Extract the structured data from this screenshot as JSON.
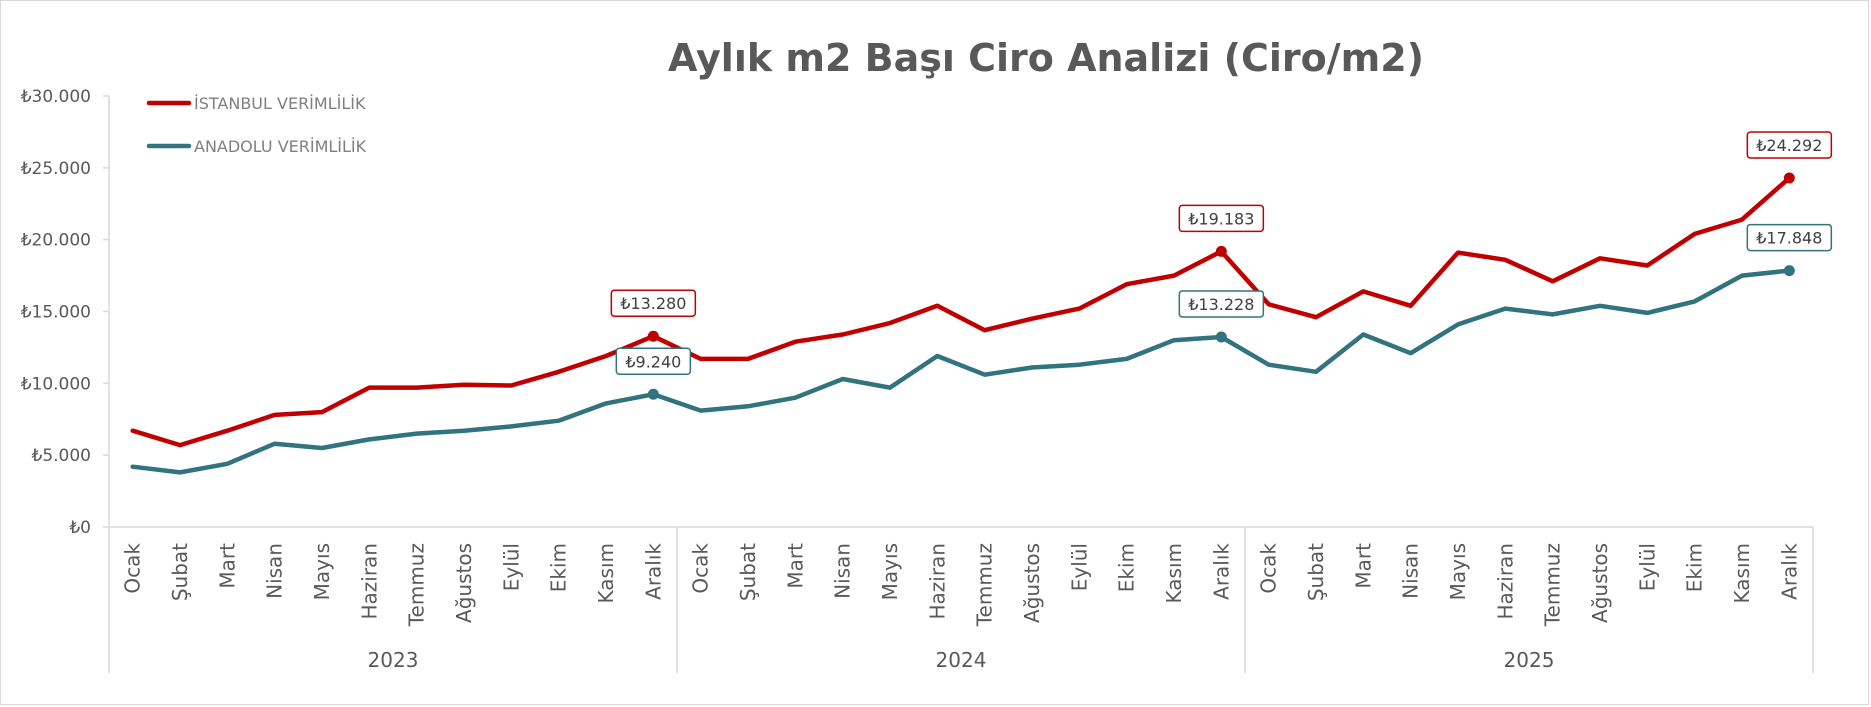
{
  "chart_data": {
    "type": "line",
    "title": "Aylık m2 Başı Ciro Analizi (Ciro/m2)",
    "xlabel": "",
    "ylabel": "",
    "ylim": [
      0,
      30000
    ],
    "yticks": [
      "₺0",
      "₺5.000",
      "₺10.000",
      "₺15.000",
      "₺20.000",
      "₺25.000",
      "₺30.000"
    ],
    "grid": false,
    "legend_position": "top-left",
    "groups": [
      {
        "label": "2023",
        "categories": [
          "Ocak",
          "Şubat",
          "Mart",
          "Nisan",
          "Mayıs",
          "Haziran",
          "Temmuz",
          "Ağustos",
          "Eylül",
          "Ekim",
          "Kasım",
          "Aralık"
        ]
      },
      {
        "label": "2024",
        "categories": [
          "Ocak",
          "Şubat",
          "Mart",
          "Nisan",
          "Mayıs",
          "Haziran",
          "Temmuz",
          "Ağustos",
          "Eylül",
          "Ekim",
          "Kasım",
          "Aralık"
        ]
      },
      {
        "label": "2025",
        "categories": [
          "Ocak",
          "Şubat",
          "Mart",
          "Nisan",
          "Mayıs",
          "Haziran",
          "Temmuz",
          "Ağustos",
          "Eylül",
          "Ekim",
          "Kasım",
          "Aralık"
        ]
      }
    ],
    "series": [
      {
        "name": "İSTANBUL VERİMLİLİK",
        "color": "#c00000",
        "values": [
          6700,
          5700,
          6700,
          7800,
          8000,
          9700,
          9700,
          9900,
          9850,
          10800,
          11900,
          13280,
          11700,
          11700,
          12900,
          13400,
          14200,
          15400,
          13700,
          14500,
          15200,
          16900,
          17500,
          19183,
          15500,
          14600,
          16400,
          15400,
          19100,
          18600,
          17100,
          18700,
          18200,
          20400,
          21400,
          24292
        ],
        "labels": [
          {
            "index": 11,
            "text": "₺13.280"
          },
          {
            "index": 23,
            "text": "₺19.183"
          },
          {
            "index": 35,
            "text": "₺24.292"
          }
        ]
      },
      {
        "name": "ANADOLU VERİMLİLİK",
        "color": "#31737f",
        "values": [
          4200,
          3800,
          4400,
          5800,
          5500,
          6100,
          6500,
          6700,
          7000,
          7400,
          8600,
          9240,
          8100,
          8400,
          9000,
          10300,
          9700,
          11900,
          10600,
          11100,
          11300,
          11700,
          13000,
          13228,
          11300,
          10800,
          13400,
          12100,
          14100,
          15200,
          14800,
          15400,
          14900,
          15700,
          17500,
          17848
        ],
        "labels": [
          {
            "index": 11,
            "text": "₺9.240"
          },
          {
            "index": 23,
            "text": "₺13.228"
          },
          {
            "index": 35,
            "text": "₺17.848"
          }
        ]
      }
    ]
  }
}
